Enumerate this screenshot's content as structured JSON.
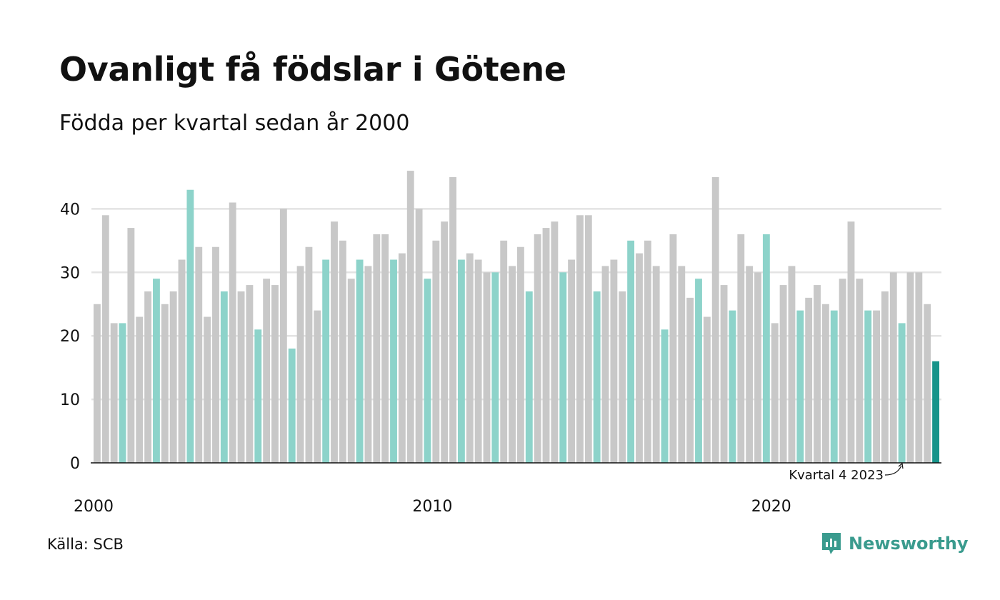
{
  "header": {
    "title": "Ovanligt få födslar i Götene",
    "subtitle": "Födda per kvartal sedan år 2000"
  },
  "footer": {
    "source": "Källa: SCB",
    "brand": "Newsworthy"
  },
  "colors": {
    "default_bar": "#c8c8c8",
    "same_quarter_bar": "#8dd3ca",
    "latest_bar": "#17948a",
    "grid": "#e3e3e3",
    "axis": "#111111",
    "brand": "#3a9b8e"
  },
  "chart_data": {
    "type": "bar",
    "title": "Ovanligt få födslar i Götene",
    "subtitle": "Födda per kvartal sedan år 2000",
    "xlabel": "",
    "ylabel": "",
    "ylim": [
      0,
      46
    ],
    "yticks": [
      0,
      10,
      20,
      30,
      40
    ],
    "xtick_labels": [
      "2000",
      "2010",
      "2020"
    ],
    "grid": true,
    "annotation": "Kvartal 4 2023",
    "highlight_note": "every fourth quarter is drawn in a lighter teal; the latest quarter in dark teal",
    "values": [
      25,
      39,
      22,
      22,
      37,
      23,
      27,
      29,
      25,
      27,
      32,
      43,
      34,
      23,
      34,
      27,
      41,
      27,
      28,
      21,
      29,
      28,
      40,
      18,
      31,
      34,
      24,
      32,
      38,
      35,
      29,
      32,
      31,
      36,
      36,
      32,
      33,
      46,
      40,
      29,
      35,
      38,
      45,
      32,
      33,
      32,
      30,
      30,
      35,
      31,
      34,
      27,
      36,
      37,
      38,
      30,
      32,
      39,
      39,
      27,
      31,
      32,
      27,
      35,
      33,
      35,
      31,
      21,
      36,
      31,
      26,
      29,
      23,
      45,
      28,
      24,
      36,
      31,
      30,
      36,
      22,
      28,
      31,
      24,
      26,
      28,
      25,
      24,
      29,
      38,
      29,
      24,
      24,
      27,
      30,
      22,
      30,
      30,
      25,
      16
    ]
  }
}
